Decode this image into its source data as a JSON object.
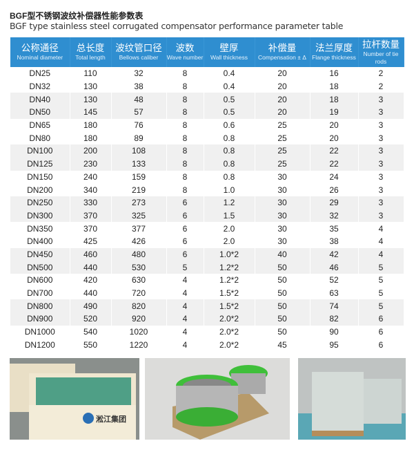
{
  "title_cn": "BGF型不锈钢波纹补偿器性能参数表",
  "title_en": "BGF type stainless steel corrugated compensator performance parameter table",
  "accent": "#2f8ed0",
  "columns": [
    {
      "cn": "公称通径",
      "en": "Nominal diameter"
    },
    {
      "cn": "总长度",
      "en": "Total length"
    },
    {
      "cn": "波纹管口径",
      "en": "Bellows caliber"
    },
    {
      "cn": "波数",
      "en": "Wave number"
    },
    {
      "cn": "壁厚",
      "en": "Wall thickness"
    },
    {
      "cn": "补偿量",
      "en": "Compensation ± Δ"
    },
    {
      "cn": "法兰厚度",
      "en": "Flange thickness"
    },
    {
      "cn": "拉杆数量",
      "en": "Number of tie rods"
    }
  ],
  "rows": [
    [
      "DN25",
      "110",
      "32",
      "8",
      "0.4",
      "20",
      "16",
      "2"
    ],
    [
      "DN32",
      "130",
      "38",
      "8",
      "0.4",
      "20",
      "18",
      "2"
    ],
    [
      "DN40",
      "130",
      "48",
      "8",
      "0.5",
      "20",
      "18",
      "3"
    ],
    [
      "DN50",
      "145",
      "57",
      "8",
      "0.5",
      "20",
      "19",
      "3"
    ],
    [
      "DN65",
      "180",
      "76",
      "8",
      "0.6",
      "25",
      "20",
      "3"
    ],
    [
      "DN80",
      "180",
      "89",
      "8",
      "0.8",
      "25",
      "20",
      "3"
    ],
    [
      "DN100",
      "200",
      "108",
      "8",
      "0.8",
      "25",
      "22",
      "3"
    ],
    [
      "DN125",
      "230",
      "133",
      "8",
      "0.8",
      "25",
      "22",
      "3"
    ],
    [
      "DN150",
      "240",
      "159",
      "8",
      "0.8",
      "30",
      "24",
      "3"
    ],
    [
      "DN200",
      "340",
      "219",
      "8",
      "1.0",
      "30",
      "26",
      "3"
    ],
    [
      "DN250",
      "330",
      "273",
      "6",
      "1.2",
      "30",
      "29",
      "3"
    ],
    [
      "DN300",
      "370",
      "325",
      "6",
      "1.5",
      "30",
      "32",
      "3"
    ],
    [
      "DN350",
      "370",
      "377",
      "6",
      "2.0",
      "30",
      "35",
      "4"
    ],
    [
      "DN400",
      "425",
      "426",
      "6",
      "2.0",
      "30",
      "38",
      "4"
    ],
    [
      "DN450",
      "460",
      "480",
      "6",
      "1.0*2",
      "40",
      "42",
      "4"
    ],
    [
      "DN500",
      "440",
      "530",
      "5",
      "1.2*2",
      "50",
      "46",
      "5"
    ],
    [
      "DN600",
      "420",
      "630",
      "4",
      "1.2*2",
      "50",
      "52",
      "5"
    ],
    [
      "DN700",
      "440",
      "720",
      "4",
      "1.5*2",
      "50",
      "63",
      "5"
    ],
    [
      "DN800",
      "490",
      "820",
      "4",
      "1.5*2",
      "50",
      "74",
      "5"
    ],
    [
      "DN900",
      "520",
      "920",
      "4",
      "2.0*2",
      "50",
      "82",
      "6"
    ],
    [
      "DN1000",
      "540",
      "1020",
      "4",
      "2.0*2",
      "50",
      "90",
      "6"
    ],
    [
      "DN1200",
      "550",
      "1220",
      "4",
      "2.0*2",
      "45",
      "95",
      "6"
    ]
  ],
  "photo_logo": "淞江集团"
}
